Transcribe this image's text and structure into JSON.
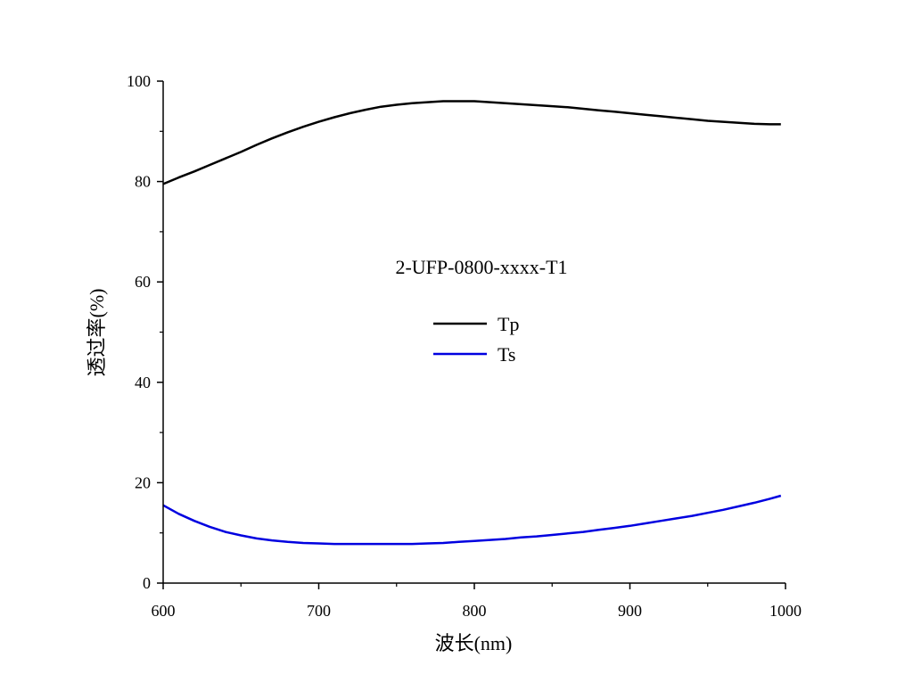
{
  "chart_data": {
    "type": "line",
    "title": "",
    "annotation": "2-UFP-0800-xxxx-T1",
    "xlabel": "波长(nm)",
    "ylabel": "透过率(%)",
    "xlim": [
      600,
      1000
    ],
    "ylim": [
      0,
      100
    ],
    "xticks": [
      600,
      700,
      800,
      900,
      1000
    ],
    "yticks": [
      0,
      20,
      40,
      60,
      80,
      100
    ],
    "grid": false,
    "legend_position": "center",
    "series": [
      {
        "name": "Tp",
        "color": "#000000",
        "x": [
          600,
          610,
          620,
          630,
          640,
          650,
          660,
          670,
          680,
          690,
          700,
          710,
          720,
          730,
          740,
          750,
          760,
          770,
          780,
          790,
          800,
          810,
          820,
          830,
          840,
          850,
          860,
          870,
          880,
          890,
          900,
          910,
          920,
          930,
          940,
          950,
          960,
          970,
          980,
          990,
          997
        ],
        "y": [
          79.5,
          80.8,
          82.0,
          83.3,
          84.6,
          85.9,
          87.3,
          88.6,
          89.8,
          90.9,
          91.9,
          92.8,
          93.6,
          94.3,
          94.9,
          95.3,
          95.6,
          95.8,
          96.0,
          96.0,
          96.0,
          95.8,
          95.6,
          95.4,
          95.2,
          95.0,
          94.8,
          94.5,
          94.2,
          93.9,
          93.6,
          93.3,
          93.0,
          92.7,
          92.4,
          92.1,
          91.9,
          91.7,
          91.5,
          91.4,
          91.4
        ]
      },
      {
        "name": "Ts",
        "color": "#0000e0",
        "x": [
          600,
          610,
          620,
          630,
          640,
          650,
          660,
          670,
          680,
          690,
          700,
          710,
          720,
          730,
          740,
          750,
          760,
          770,
          780,
          790,
          800,
          810,
          820,
          830,
          840,
          850,
          860,
          870,
          880,
          890,
          900,
          910,
          920,
          930,
          940,
          950,
          960,
          970,
          980,
          990,
          997
        ],
        "y": [
          15.5,
          13.8,
          12.4,
          11.2,
          10.2,
          9.5,
          8.9,
          8.5,
          8.2,
          8.0,
          7.9,
          7.8,
          7.8,
          7.8,
          7.8,
          7.8,
          7.8,
          7.9,
          8.0,
          8.2,
          8.4,
          8.6,
          8.8,
          9.1,
          9.3,
          9.6,
          9.9,
          10.2,
          10.6,
          11.0,
          11.4,
          11.9,
          12.4,
          12.9,
          13.4,
          14.0,
          14.6,
          15.3,
          16.0,
          16.8,
          17.4
        ]
      }
    ]
  }
}
